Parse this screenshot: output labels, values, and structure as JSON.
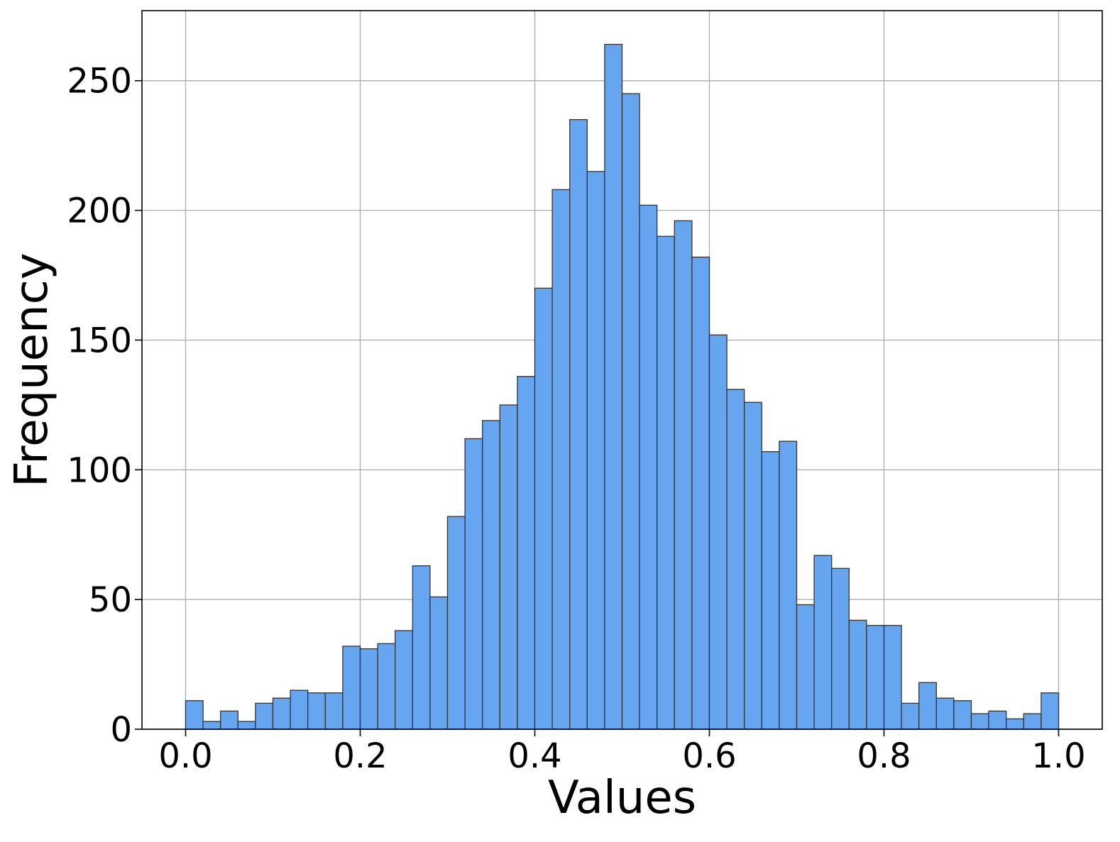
{
  "chart_data": {
    "type": "bar",
    "subtype": "histogram",
    "title": "",
    "xlabel": "Values",
    "ylabel": "Frequency",
    "xlim": [
      -0.05,
      1.05
    ],
    "ylim": [
      0,
      277
    ],
    "grid": true,
    "legend": false,
    "bar_color": "#66a5f0",
    "edge_color": "#333333",
    "grid_color": "#b0b0b0",
    "bin_start": 0.0,
    "bin_end": 1.0,
    "x_ticks": [
      "0.0",
      "0.2",
      "0.4",
      "0.6",
      "0.8",
      "1.0"
    ],
    "x_tick_values": [
      0.0,
      0.2,
      0.4,
      0.6,
      0.8,
      1.0
    ],
    "y_ticks": [
      "0",
      "50",
      "100",
      "150",
      "200",
      "250"
    ],
    "y_tick_values": [
      0,
      50,
      100,
      150,
      200,
      250
    ],
    "values": [
      11,
      3,
      7,
      3,
      10,
      12,
      15,
      14,
      14,
      32,
      31,
      33,
      38,
      63,
      51,
      82,
      112,
      119,
      125,
      136,
      170,
      208,
      235,
      215,
      264,
      245,
      202,
      190,
      196,
      182,
      152,
      131,
      126,
      107,
      111,
      48,
      67,
      62,
      42,
      40,
      40,
      10,
      18,
      12,
      11,
      6,
      7,
      4,
      6,
      14
    ]
  }
}
